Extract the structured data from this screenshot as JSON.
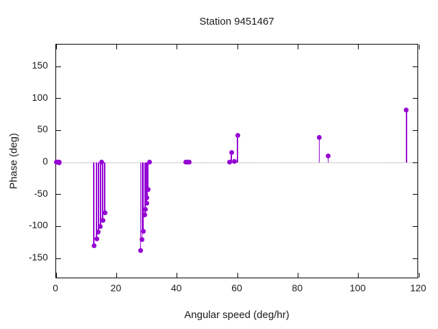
{
  "window": {
    "background": "#ffffff"
  },
  "chart_data": {
    "type": "stem",
    "title": "Station 9451467",
    "xlabel": "Angular speed (deg/hr)",
    "ylabel": "Phase (deg)",
    "xlim": [
      0,
      120
    ],
    "ylim": [
      -182,
      184
    ],
    "x_ticks": [
      0,
      20,
      40,
      60,
      80,
      100,
      120
    ],
    "y_ticks": [
      -150,
      -100,
      -50,
      0,
      50,
      100,
      150
    ],
    "grid": false,
    "legend": false,
    "zero_line_y": 0,
    "axis_color": "#000000",
    "zero_line_color": "#9e9e9e",
    "series": [
      {
        "name": "phase",
        "style": "impulses+points",
        "marker": "filled-circle",
        "color": "#9400d3",
        "points": [
          [
            0.04,
            1
          ],
          [
            0.08,
            1
          ],
          [
            0.54,
            1
          ],
          [
            1.02,
            0
          ],
          [
            1.1,
            1
          ],
          [
            12.5,
            -130
          ],
          [
            13.4,
            -119
          ],
          [
            14.0,
            -109
          ],
          [
            14.7,
            -100
          ],
          [
            15.05,
            1
          ],
          [
            15.4,
            -90
          ],
          [
            16.1,
            -79
          ],
          [
            28.0,
            -138
          ],
          [
            28.4,
            -120
          ],
          [
            28.8,
            -108
          ],
          [
            29.4,
            -82
          ],
          [
            29.5,
            -73
          ],
          [
            29.9,
            -64
          ],
          [
            30.1,
            -55
          ],
          [
            30.5,
            -42
          ],
          [
            31.0,
            1
          ],
          [
            42.9,
            1
          ],
          [
            43.5,
            1
          ],
          [
            44.0,
            1
          ],
          [
            57.4,
            1
          ],
          [
            58.0,
            16
          ],
          [
            59.0,
            2
          ],
          [
            60.0,
            42
          ],
          [
            87.0,
            39
          ],
          [
            90.0,
            10
          ],
          [
            115.9,
            82
          ]
        ]
      }
    ]
  }
}
